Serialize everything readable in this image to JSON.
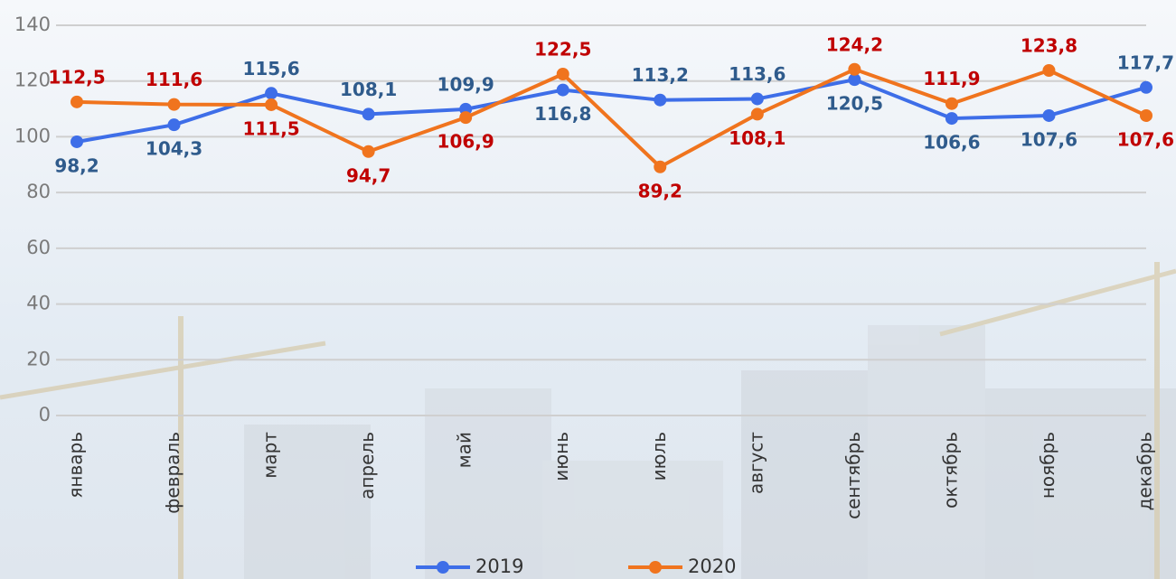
{
  "chart_data": {
    "type": "line",
    "categories": [
      "январь",
      "февраль",
      "март",
      "апрель",
      "май",
      "июнь",
      "июль",
      "август",
      "сентябрь",
      "октябрь",
      "ноябрь",
      "декабрь"
    ],
    "series": [
      {
        "name": "2019",
        "color": "#3e6ee8",
        "label_color": "#2f5b8c",
        "values": [
          98.2,
          104.3,
          115.6,
          108.1,
          109.9,
          116.8,
          113.2,
          113.6,
          120.5,
          106.6,
          107.6,
          117.7
        ],
        "value_labels": [
          "98,2",
          "104,3",
          "115,6",
          "108,1",
          "109,9",
          "116,8",
          "113,2",
          "113,6",
          "120,5",
          "106,6",
          "107,6",
          "117,7"
        ]
      },
      {
        "name": "2020",
        "color": "#f0741e",
        "label_color": "#c00000",
        "values": [
          112.5,
          111.6,
          111.5,
          94.7,
          106.9,
          122.5,
          89.2,
          108.1,
          124.2,
          111.9,
          123.8,
          107.6
        ],
        "value_labels": [
          "112,5",
          "111,6",
          "111,5",
          "94,7",
          "106,9",
          "122,5",
          "89,2",
          "108,1",
          "124,2",
          "111,9",
          "123,8",
          "107,6"
        ]
      }
    ],
    "ylim": [
      0,
      140
    ],
    "yticks": [
      0,
      20,
      40,
      60,
      80,
      100,
      120,
      140
    ],
    "grid": true
  }
}
